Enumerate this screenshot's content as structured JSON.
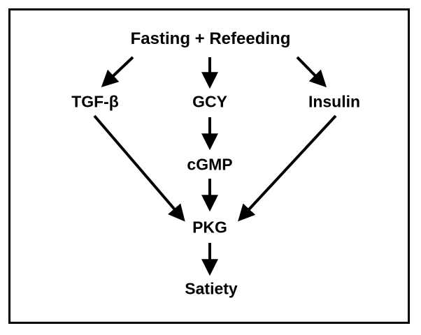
{
  "nodes": {
    "fasting_refeeding": "Fasting + Refeeding",
    "tgf_prefix": "TGF-",
    "tgf_symbol": "β",
    "gcy": "GCY",
    "insulin": "Insulin",
    "cgmp": "cGMP",
    "pkg": "PKG",
    "satiety": "Satiety"
  },
  "edges": [
    {
      "from": "Fasting + Refeeding",
      "to": "TGF-β"
    },
    {
      "from": "Fasting + Refeeding",
      "to": "GCY"
    },
    {
      "from": "Fasting + Refeeding",
      "to": "Insulin"
    },
    {
      "from": "GCY",
      "to": "cGMP"
    },
    {
      "from": "cGMP",
      "to": "PKG"
    },
    {
      "from": "TGF-β",
      "to": "PKG"
    },
    {
      "from": "Insulin",
      "to": "PKG"
    },
    {
      "from": "PKG",
      "to": "Satiety"
    }
  ],
  "colors": {
    "ink": "#000000",
    "background": "#ffffff"
  }
}
